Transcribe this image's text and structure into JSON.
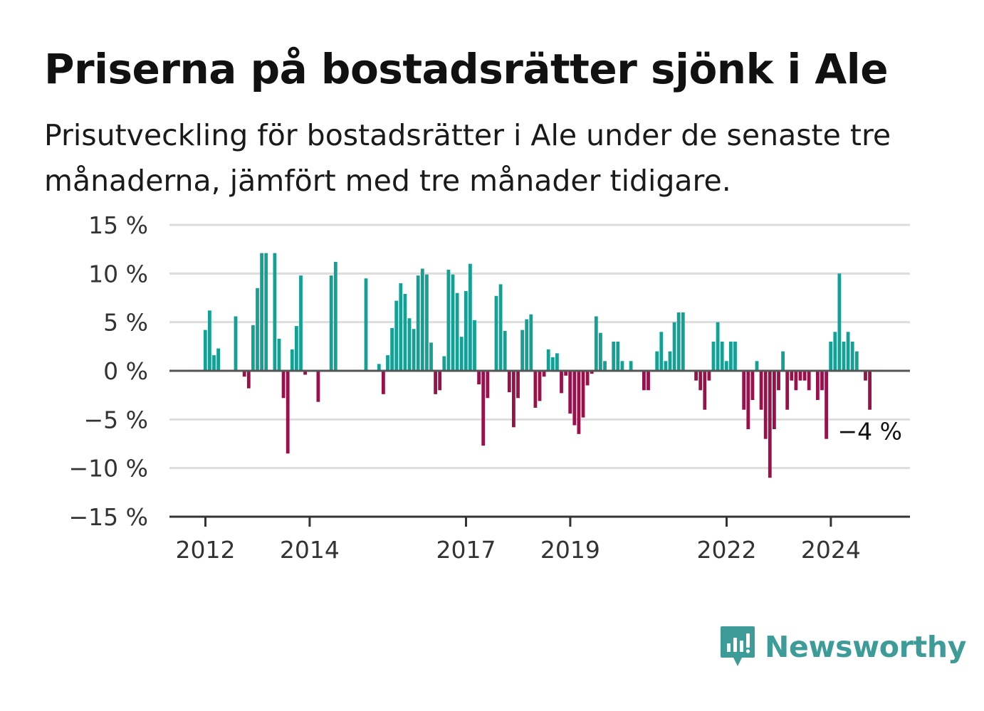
{
  "title": "Priserna på bostadsrätter sjönk i Ale",
  "subtitle": "Prisutveckling för bostadsrätter i Ale under de senaste tre månaderna, jämfört med tre månader tidigare.",
  "brand": {
    "name": "Newsworthy",
    "icon": "newsworthy-logo-icon"
  },
  "colors": {
    "positive": "#14a195",
    "negative": "#99104b",
    "zero_line": "#555555",
    "grid": "#dddddd",
    "brand": "#3d9c98"
  },
  "chart_data": {
    "type": "bar",
    "title": "Priserna på bostadsrätter sjönk i Ale",
    "subtitle": "Prisutveckling för bostadsrätter i Ale under de senaste tre månaderna, jämfört med tre månader tidigare.",
    "unit": "%",
    "ylim": [
      -15,
      15
    ],
    "yticks": [
      15,
      10,
      5,
      0,
      -5,
      -10,
      -15
    ],
    "ytick_labels": [
      "15 %",
      "10 %",
      "5 %",
      "0 %",
      "−5 %",
      "−10 %",
      "−15 %"
    ],
    "xticks": [
      "2012",
      "2014",
      "2017",
      "2019",
      "2022",
      "2024"
    ],
    "x_start": "2012-01",
    "grid": true,
    "end_label": "−4 %",
    "values": [
      4.2,
      6.2,
      1.6,
      2.3,
      null,
      null,
      null,
      5.6,
      null,
      -0.6,
      -1.8,
      4.7,
      8.5,
      12.1,
      12.1,
      null,
      12.1,
      3.3,
      -2.8,
      -8.5,
      2.2,
      4.6,
      9.8,
      -0.4,
      null,
      null,
      -3.2,
      null,
      null,
      9.8,
      11.2,
      null,
      null,
      null,
      null,
      null,
      null,
      9.5,
      null,
      null,
      0.7,
      -2.4,
      1.6,
      4.4,
      7.2,
      9.0,
      7.9,
      5.4,
      4.3,
      9.8,
      10.5,
      9.9,
      2.9,
      -2.4,
      -2.0,
      1.5,
      10.4,
      9.9,
      8.0,
      3.5,
      8.2,
      11.0,
      5.2,
      -1.4,
      -7.7,
      -2.8,
      null,
      7.7,
      8.9,
      4.1,
      -2.2,
      -5.8,
      -2.8,
      4.2,
      5.3,
      5.8,
      -3.8,
      -3.1,
      -0.6,
      2.2,
      1.4,
      1.8,
      -2.3,
      -0.5,
      -4.4,
      -5.6,
      -6.5,
      -4.8,
      -1.5,
      -0.3,
      5.6,
      3.9,
      1.0,
      null,
      3.0,
      3.0,
      1.0,
      null,
      1.0,
      null,
      null,
      -2.0,
      -2.0,
      null,
      2.0,
      4.0,
      1.0,
      2.0,
      5.0,
      6.0,
      6.0,
      null,
      null,
      -1.0,
      -2.0,
      -4.0,
      -1.0,
      3.0,
      5.0,
      3.0,
      1.0,
      3.0,
      3.0,
      null,
      -4.0,
      -6.0,
      -3.0,
      1.0,
      -4.0,
      -7.0,
      -11.0,
      -6.0,
      -2.0,
      2.0,
      -4.0,
      -1.0,
      -2.0,
      -1.0,
      -1.0,
      -2.0,
      null,
      -3.0,
      -2.0,
      -7.0,
      3.0,
      4.0,
      10.0,
      3.0,
      4.0,
      3.0,
      2.0,
      null,
      -1.0,
      -4.0
    ]
  }
}
